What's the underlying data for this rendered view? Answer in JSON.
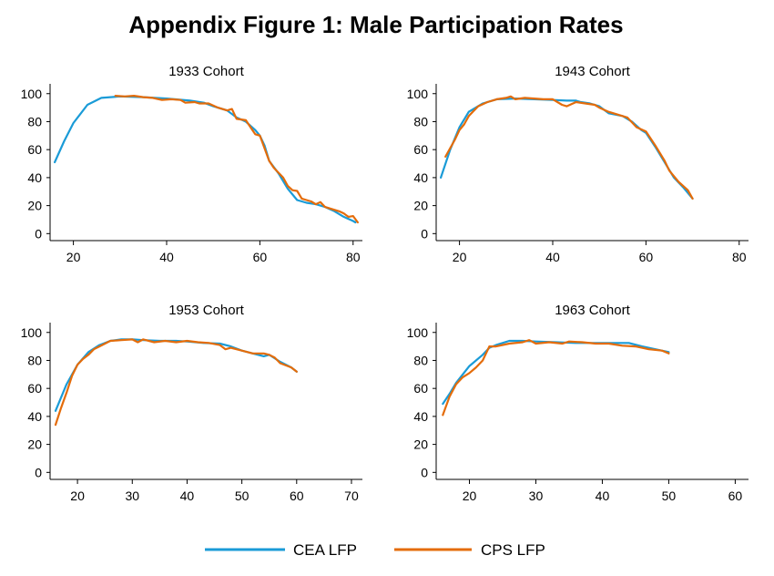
{
  "title": "Appendix Figure 1: Male Participation Rates",
  "colors": {
    "cea": "#1a9bd7",
    "cps": "#e46c0a"
  },
  "legend": [
    "CEA LFP",
    "CPS LFP"
  ],
  "chart_data": [
    {
      "type": "line",
      "title": "1933 Cohort",
      "xlim": [
        15,
        82
      ],
      "ylim": [
        -5,
        107
      ],
      "xticks": [
        20,
        40,
        60,
        80
      ],
      "yticks": [
        0,
        20,
        40,
        60,
        80,
        100
      ],
      "grid": false,
      "series": [
        {
          "name": "CEA LFP",
          "points": [
            [
              16,
              51
            ],
            [
              18,
              66
            ],
            [
              20,
              79
            ],
            [
              23,
              92
            ],
            [
              26,
              97
            ],
            [
              30,
              98
            ],
            [
              35,
              97.5
            ],
            [
              40,
              96.5
            ],
            [
              45,
              95
            ],
            [
              48,
              93.5
            ],
            [
              50,
              91
            ],
            [
              53,
              88
            ],
            [
              55,
              83
            ],
            [
              57,
              80
            ],
            [
              59,
              74
            ],
            [
              60,
              70
            ],
            [
              61,
              63
            ],
            [
              62,
              52
            ],
            [
              64,
              43
            ],
            [
              66,
              32
            ],
            [
              68,
              24
            ],
            [
              70,
              22
            ],
            [
              72,
              21
            ],
            [
              74,
              19
            ],
            [
              76,
              16
            ],
            [
              78,
              12
            ],
            [
              80,
              9
            ],
            [
              80.5,
              8
            ]
          ]
        },
        {
          "name": "CPS LFP",
          "points": [
            [
              29,
              98.5
            ],
            [
              31,
              98
            ],
            [
              33,
              98.5
            ],
            [
              35,
              97.5
            ],
            [
              37,
              97
            ],
            [
              39,
              95.5
            ],
            [
              41,
              96
            ],
            [
              43,
              95.5
            ],
            [
              44,
              93.5
            ],
            [
              46,
              94
            ],
            [
              47,
              93
            ],
            [
              49,
              93
            ],
            [
              51,
              90
            ],
            [
              53,
              88
            ],
            [
              54,
              89
            ],
            [
              55,
              82
            ],
            [
              57,
              81
            ],
            [
              58,
              76
            ],
            [
              59,
              71
            ],
            [
              60,
              70
            ],
            [
              61,
              61
            ],
            [
              62,
              52
            ],
            [
              63,
              47
            ],
            [
              65,
              40
            ],
            [
              66,
              34
            ],
            [
              67,
              31
            ],
            [
              68,
              30.5
            ],
            [
              69,
              25
            ],
            [
              70,
              24
            ],
            [
              71,
              23
            ],
            [
              72,
              21
            ],
            [
              73,
              22.5
            ],
            [
              74,
              19
            ],
            [
              75,
              18
            ],
            [
              77,
              16
            ],
            [
              78,
              14.5
            ],
            [
              79,
              12
            ],
            [
              80,
              12.5
            ],
            [
              81,
              8
            ]
          ]
        }
      ]
    },
    {
      "type": "line",
      "title": "1943 Cohort",
      "xlim": [
        15,
        82
      ],
      "ylim": [
        -5,
        107
      ],
      "xticks": [
        20,
        40,
        60,
        80
      ],
      "yticks": [
        0,
        20,
        40,
        60,
        80,
        100
      ],
      "grid": false,
      "series": [
        {
          "name": "CEA LFP",
          "points": [
            [
              16,
              40
            ],
            [
              18,
              60
            ],
            [
              20,
              76
            ],
            [
              22,
              87
            ],
            [
              25,
              93
            ],
            [
              28,
              96
            ],
            [
              32,
              96.5
            ],
            [
              36,
              96
            ],
            [
              40,
              95.5
            ],
            [
              43,
              95
            ],
            [
              45,
              95
            ],
            [
              46,
              94
            ],
            [
              48,
              93
            ],
            [
              50,
              91
            ],
            [
              52,
              86
            ],
            [
              55,
              84
            ],
            [
              57,
              80
            ],
            [
              59,
              74
            ],
            [
              60,
              72
            ],
            [
              62,
              62
            ],
            [
              64,
              51
            ],
            [
              66,
              40
            ],
            [
              68,
              33
            ],
            [
              70,
              25
            ]
          ]
        },
        {
          "name": "CPS LFP",
          "points": [
            [
              17,
              55
            ],
            [
              19,
              67
            ],
            [
              20,
              74
            ],
            [
              21,
              78
            ],
            [
              22,
              84
            ],
            [
              24,
              91
            ],
            [
              26,
              94
            ],
            [
              28,
              96
            ],
            [
              30,
              97
            ],
            [
              31,
              98
            ],
            [
              32,
              96
            ],
            [
              34,
              97
            ],
            [
              36,
              96.5
            ],
            [
              38,
              96
            ],
            [
              40,
              96
            ],
            [
              42,
              92
            ],
            [
              43,
              91
            ],
            [
              45,
              94
            ],
            [
              47,
              93
            ],
            [
              49,
              92
            ],
            [
              50,
              90
            ],
            [
              52,
              87
            ],
            [
              54,
              85
            ],
            [
              56,
              83
            ],
            [
              58,
              76
            ],
            [
              60,
              73
            ],
            [
              62,
              63
            ],
            [
              64,
              52
            ],
            [
              65,
              45
            ],
            [
              67,
              37
            ],
            [
              69,
              31
            ],
            [
              70,
              25
            ]
          ]
        }
      ]
    },
    {
      "type": "line",
      "title": "1953 Cohort",
      "xlim": [
        15,
        72
      ],
      "ylim": [
        -5,
        107
      ],
      "xticks": [
        20,
        30,
        40,
        50,
        60,
        70
      ],
      "yticks": [
        0,
        20,
        40,
        60,
        80,
        100
      ],
      "grid": false,
      "series": [
        {
          "name": "CEA LFP",
          "points": [
            [
              16,
              44
            ],
            [
              18,
              63
            ],
            [
              20,
              77
            ],
            [
              22,
              86
            ],
            [
              24,
              91
            ],
            [
              26,
              94
            ],
            [
              28,
              95
            ],
            [
              30,
              95
            ],
            [
              32,
              94.5
            ],
            [
              35,
              94
            ],
            [
              38,
              94
            ],
            [
              40,
              93.5
            ],
            [
              43,
              92.5
            ],
            [
              46,
              92
            ],
            [
              48,
              90
            ],
            [
              50,
              87
            ],
            [
              52,
              85
            ],
            [
              54,
              83
            ],
            [
              55,
              84
            ],
            [
              57,
              79
            ],
            [
              59,
              75
            ],
            [
              60,
              72
            ]
          ]
        },
        {
          "name": "CPS LFP",
          "points": [
            [
              16,
              34
            ],
            [
              17,
              46
            ],
            [
              18,
              57
            ],
            [
              19,
              69
            ],
            [
              20,
              77
            ],
            [
              21,
              81
            ],
            [
              22,
              84
            ],
            [
              23,
              88
            ],
            [
              24,
              90
            ],
            [
              26,
              94
            ],
            [
              28,
              94.5
            ],
            [
              30,
              95
            ],
            [
              31,
              93
            ],
            [
              32,
              95
            ],
            [
              34,
              93
            ],
            [
              36,
              94
            ],
            [
              38,
              93
            ],
            [
              40,
              94
            ],
            [
              42,
              93
            ],
            [
              44,
              92.5
            ],
            [
              46,
              91
            ],
            [
              47,
              88
            ],
            [
              48,
              89
            ],
            [
              50,
              87
            ],
            [
              52,
              85
            ],
            [
              54,
              85
            ],
            [
              55,
              84
            ],
            [
              56,
              82
            ],
            [
              57,
              78
            ],
            [
              59,
              75
            ],
            [
              60,
              72
            ]
          ]
        }
      ]
    },
    {
      "type": "line",
      "title": "1963 Cohort",
      "xlim": [
        15,
        62
      ],
      "ylim": [
        -5,
        107
      ],
      "xticks": [
        20,
        30,
        40,
        50,
        60
      ],
      "yticks": [
        0,
        20,
        40,
        60,
        80,
        100
      ],
      "grid": false,
      "series": [
        {
          "name": "CEA LFP",
          "points": [
            [
              16,
              49
            ],
            [
              17,
              56
            ],
            [
              18,
              64
            ],
            [
              20,
              76
            ],
            [
              22,
              84
            ],
            [
              23,
              89
            ],
            [
              24,
              91
            ],
            [
              26,
              94
            ],
            [
              28,
              94
            ],
            [
              30,
              93.5
            ],
            [
              33,
              93
            ],
            [
              36,
              92.5
            ],
            [
              40,
              92.5
            ],
            [
              44,
              92.5
            ],
            [
              46,
              90
            ],
            [
              48,
              88
            ],
            [
              50,
              86
            ]
          ]
        },
        {
          "name": "CPS LFP",
          "points": [
            [
              16,
              41
            ],
            [
              17,
              54
            ],
            [
              18,
              63
            ],
            [
              19,
              68
            ],
            [
              20,
              71
            ],
            [
              21,
              75
            ],
            [
              22,
              80
            ],
            [
              23,
              90
            ],
            [
              24,
              90
            ],
            [
              26,
              92
            ],
            [
              28,
              93
            ],
            [
              29,
              94.5
            ],
            [
              30,
              92
            ],
            [
              32,
              93
            ],
            [
              34,
              92
            ],
            [
              35,
              93.5
            ],
            [
              37,
              93
            ],
            [
              39,
              92
            ],
            [
              41,
              92
            ],
            [
              43,
              90.5
            ],
            [
              45,
              90
            ],
            [
              47,
              88
            ],
            [
              49,
              87
            ],
            [
              50,
              85
            ]
          ]
        }
      ]
    }
  ]
}
